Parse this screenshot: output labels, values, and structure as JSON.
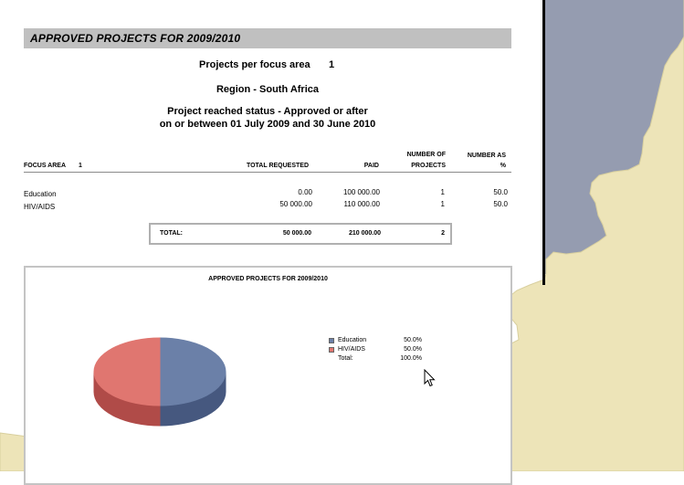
{
  "banner_title": "APPROVED PROJECTS FOR 2009/2010",
  "header": {
    "per_focus_label": "Projects per focus area",
    "per_focus_value": "1",
    "region": "Region - South Africa",
    "status_line1": "Project reached status - Approved or after",
    "status_line2": "on or between 01 July 2009 and 30 June 2010"
  },
  "table": {
    "columns": {
      "focus_area": "FOCUS AREA",
      "focus_area_num": "1",
      "total_requested": "TOTAL REQUESTED",
      "paid": "PAID",
      "num_projects_line1": "NUMBER OF",
      "num_projects_line2": "PROJECTS",
      "number_pct_line1": "NUMBER AS",
      "number_pct_line2": "%"
    },
    "rows": [
      {
        "focus": "Education",
        "requested": "0.00",
        "paid": "100 000.00",
        "projects": "1",
        "pct": "50.0"
      },
      {
        "focus": "HIV/AIDS",
        "requested": "50 000.00",
        "paid": "110 000.00",
        "projects": "1",
        "pct": "50.0"
      }
    ],
    "total": {
      "label": "TOTAL:",
      "requested": "50 000.00",
      "paid": "210 000.00",
      "projects": "2"
    }
  },
  "chart_data": {
    "type": "pie",
    "title": "APPROVED PROJECTS FOR 2009/2010",
    "categories": [
      "Education",
      "HIV/AIDS"
    ],
    "values": [
      50.0,
      50.0
    ],
    "value_labels": [
      "50.0%",
      "50.0%"
    ],
    "colors": [
      "#6b80a8",
      "#e07670"
    ],
    "side_colors": [
      "#46587f",
      "#b04b48"
    ],
    "legend_placement": "right",
    "legend_total_label": "Total:",
    "legend_total_value": "100.0%"
  },
  "colors": {
    "banner_bg": "#c0c0c0",
    "map_land": "#ede4b8",
    "map_water": "#959cb0"
  },
  "icons": {
    "cursor": "mouse-pointer-icon"
  }
}
